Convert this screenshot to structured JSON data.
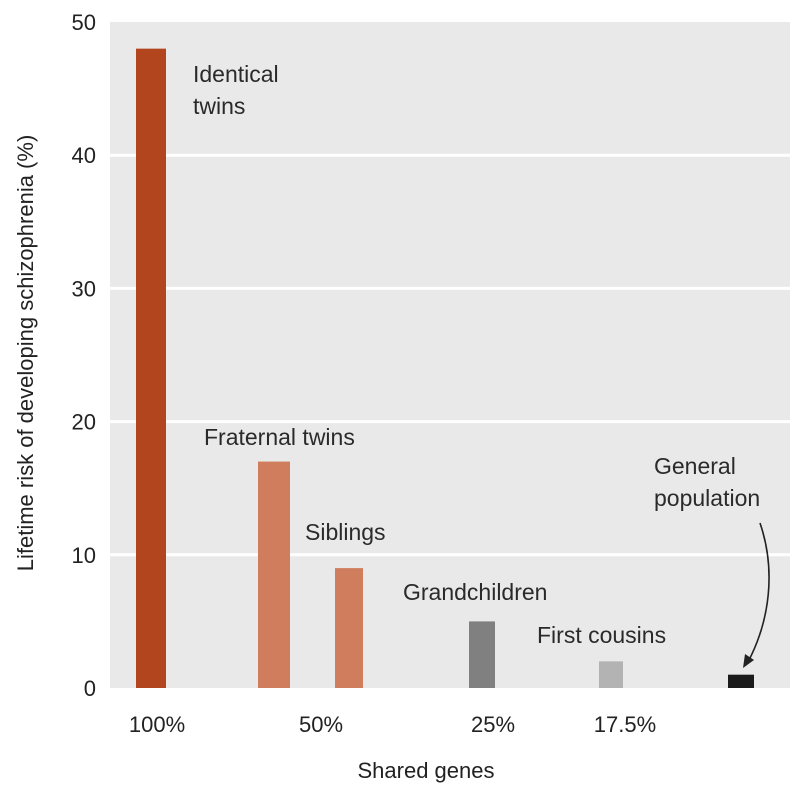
{
  "chart_data": {
    "type": "bar",
    "title": "",
    "xlabel": "Shared genes",
    "ylabel": "Lifetime risk of developing schizophrenia (%)",
    "ylim": [
      0,
      50
    ],
    "yticks": [
      0,
      10,
      20,
      30,
      40,
      50
    ],
    "grid": "horizontal",
    "bars": [
      {
        "label": "Identical twins",
        "value": 48,
        "shared_genes": "100%",
        "color": "#b2451e"
      },
      {
        "label": "Fraternal twins",
        "value": 17,
        "shared_genes": "50%",
        "color": "#cf7d5c"
      },
      {
        "label": "Siblings",
        "value": 9,
        "shared_genes": "50%",
        "color": "#cf7d5c"
      },
      {
        "label": "Grandchildren",
        "value": 5,
        "shared_genes": "25%",
        "color": "#808080"
      },
      {
        "label": "First cousins",
        "value": 2,
        "shared_genes": "17.5%",
        "color": "#b3b3b3"
      },
      {
        "label": "General population",
        "value": 1,
        "shared_genes": "",
        "color": "#1a1a1a"
      }
    ],
    "x_tick_labels": [
      "100%",
      "50%",
      "25%",
      "17.5%"
    ]
  },
  "colors": {
    "plot_background": "#e9e9e9",
    "gridline": "#ffffff"
  }
}
